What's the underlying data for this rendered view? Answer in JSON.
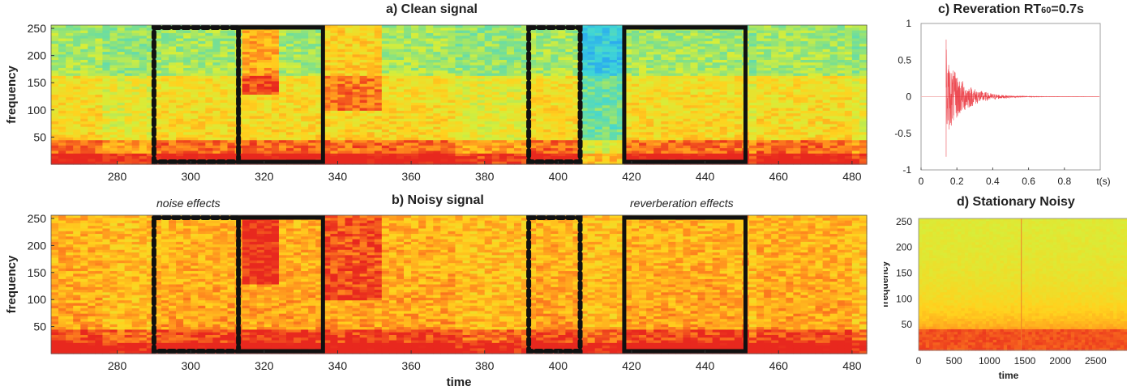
{
  "chart_data": [
    {
      "id": "a",
      "type": "heatmap",
      "title": "a) Clean signal",
      "ylabel": "frequency",
      "xlabel": "",
      "xlim": [
        262,
        484
      ],
      "ylim": [
        0,
        256
      ],
      "xticks": [
        280,
        300,
        320,
        340,
        360,
        380,
        400,
        420,
        440,
        460,
        480
      ],
      "yticks": [
        50,
        100,
        150,
        200,
        250
      ],
      "colormap": [
        "#2aa8f0",
        "#3fd6d6",
        "#7fe08a",
        "#d6ee3a",
        "#ffd21e",
        "#ff8a1e",
        "#e8281e"
      ],
      "boxes": [
        {
          "x0": 290,
          "x1": 313,
          "style": "dotted",
          "label": "noise effects"
        },
        {
          "x0": 313,
          "x1": 336,
          "style": "solid"
        },
        {
          "x0": 392,
          "x1": 406,
          "style": "dotted"
        },
        {
          "x0": 418,
          "x1": 451,
          "style": "solid",
          "label": "reverberation effects"
        }
      ]
    },
    {
      "id": "b",
      "type": "heatmap",
      "title": "b) Noisy signal",
      "ylabel": "frequency",
      "xlabel": "time",
      "xlim": [
        262,
        484
      ],
      "ylim": [
        0,
        256
      ],
      "xticks": [
        280,
        300,
        320,
        340,
        360,
        380,
        400,
        420,
        440,
        460,
        480
      ],
      "yticks": [
        50,
        100,
        150,
        200,
        250
      ],
      "annotations": [
        "noise effects",
        "reverberation effects"
      ],
      "boxes": [
        {
          "x0": 290,
          "x1": 313,
          "style": "dotted"
        },
        {
          "x0": 313,
          "x1": 336,
          "style": "solid"
        },
        {
          "x0": 392,
          "x1": 406,
          "style": "dotted"
        },
        {
          "x0": 418,
          "x1": 451,
          "style": "solid"
        }
      ]
    },
    {
      "id": "c",
      "type": "line",
      "title": "c) Reveration RT60=0.7s",
      "title_main": "c) Reveration RT",
      "title_sub": "60",
      "title_tail": "=0.7s",
      "xlabel": "t(s)",
      "ylabel": "",
      "xlim": [
        0,
        1
      ],
      "ylim": [
        -1,
        1
      ],
      "xticks": [
        0,
        0.2,
        0.4,
        0.6,
        0.8
      ],
      "xtick_labels": [
        "0",
        "0.2",
        "0.4",
        "0.6",
        "0.8"
      ],
      "yticks": [
        -1,
        -0.5,
        0,
        0.5,
        1
      ],
      "ytick_labels": [
        "-1",
        "-0.5",
        "0",
        "0.5",
        "1"
      ],
      "impulse_onset": 0.14,
      "rt60": 0.7,
      "color": "#e8202a"
    },
    {
      "id": "d",
      "type": "heatmap",
      "title": "d) Stationary Noisy",
      "xlabel": "time",
      "ylabel": "frequency",
      "xlim": [
        0,
        3000
      ],
      "ylim": [
        0,
        256
      ],
      "xticks": [
        0,
        500,
        1000,
        1500,
        2000,
        2500
      ],
      "yticks": [
        50,
        100,
        150,
        200,
        250
      ]
    }
  ]
}
